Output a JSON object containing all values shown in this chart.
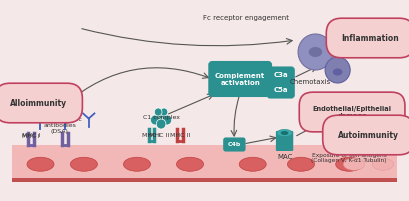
{
  "bg_color": "#f5e8e8",
  "cell_row_color": "#f0b8b8",
  "cell_oval_color": "#e88888",
  "teal": "#2a9090",
  "teal_light": "#3aacac",
  "pink_label": "#e05070",
  "red_label": "#c03050",
  "purple_cell1": "#9090c0",
  "purple_cell2": "#b090c0",
  "pink_cell": "#e090b0",
  "arrow_color": "#555555",
  "labels": {
    "alloimmunity": "Alloimmunity",
    "dsa": "Donor-specific\nantibodies\n(DSA)",
    "mhc1": "MHC I",
    "mhc2": "MHC II",
    "c1complex": "C1 complex",
    "complement": "Complement\nactivation",
    "c3a": "C3a",
    "c5a": "C5a",
    "c4b": "C4b",
    "mac": "MAC",
    "fc_receptor": "Fc receptor engagement",
    "chemotaxis": "Chemotaxis",
    "inflammation": "Inflammation",
    "endothelial": "Endothelial/Epithelial\ndamage",
    "autoimmunity": "Autoimmunity",
    "exposure": "Exposure of self-antigens\n(Collagen V, K-α1 Tubulin)"
  }
}
